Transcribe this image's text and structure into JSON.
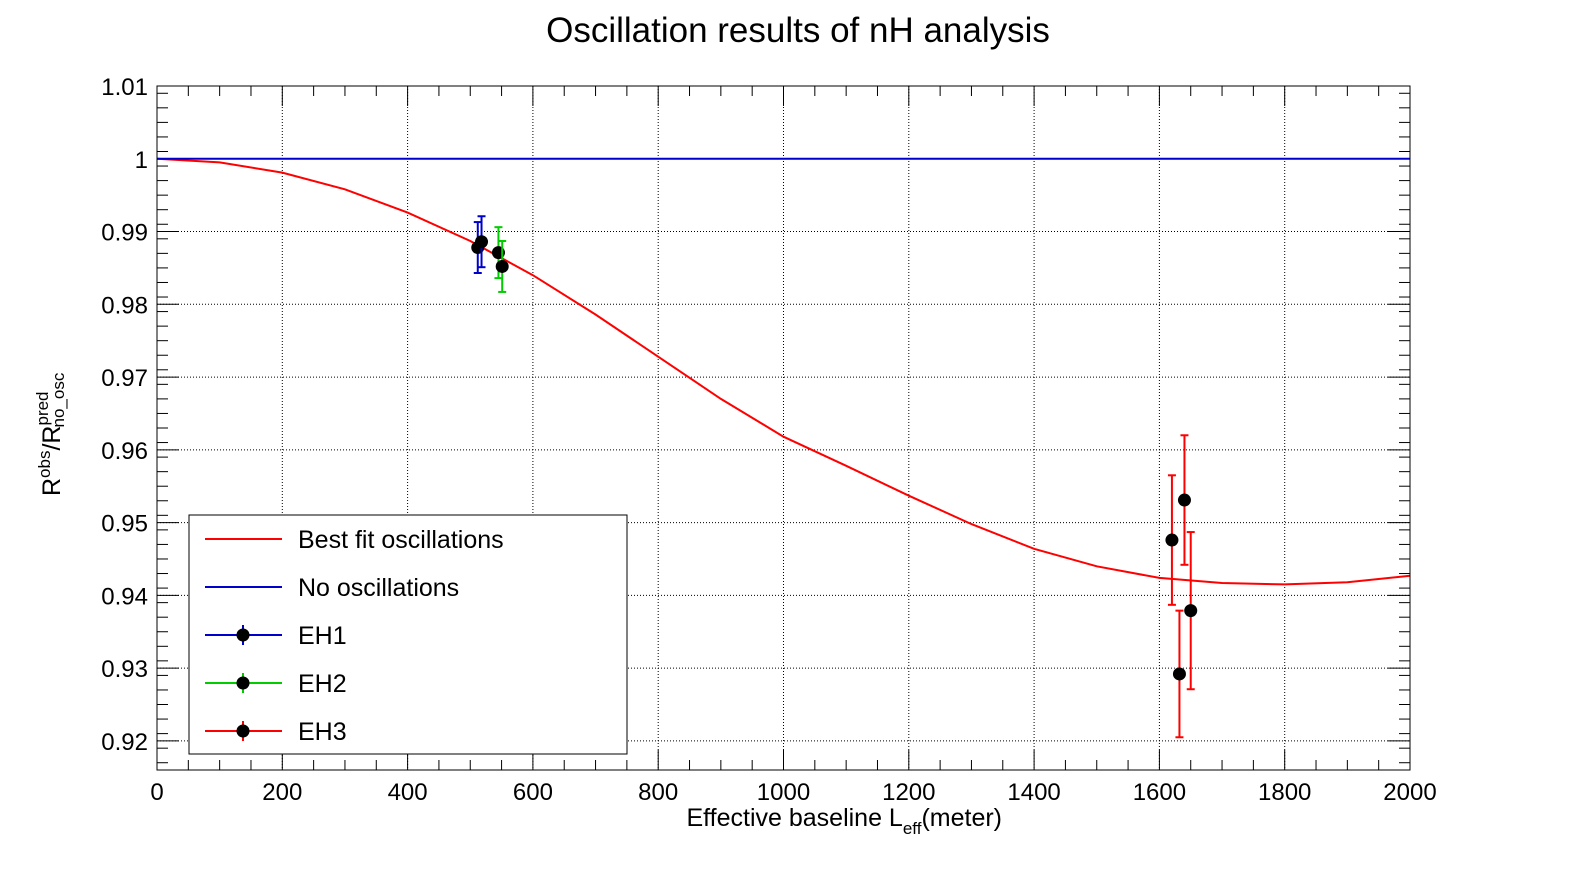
{
  "chart_data": {
    "type": "scatter",
    "title": "Oscillation results of nH analysis",
    "xlabel": {
      "main": "Effective baseline L",
      "sub": "eff",
      "unit": "(meter)"
    },
    "ylabel": {
      "r1": "R",
      "sup1": "obs",
      "slash": "/R",
      "sup2": "pred",
      "sub2": "no_osc"
    },
    "xlim": [
      0,
      2000
    ],
    "ylim": [
      0.916,
      1.01
    ],
    "xticks": [
      0,
      200,
      400,
      600,
      800,
      1000,
      1200,
      1400,
      1600,
      1800,
      2000
    ],
    "xtick_labels": [
      "0",
      "200",
      "400",
      "600",
      "800",
      "1000",
      "1200",
      "1400",
      "1600",
      "1800",
      "2000"
    ],
    "yticks": [
      0.92,
      0.93,
      0.94,
      0.95,
      0.96,
      0.97,
      0.98,
      0.99,
      1,
      1.01
    ],
    "ytick_labels": [
      "0.92",
      "0.93",
      "0.94",
      "0.95",
      "0.96",
      "0.97",
      "0.98",
      "0.99",
      "1",
      "1.01"
    ],
    "grid": true,
    "legend_position": "bottom-left",
    "series": [
      {
        "name": "Best fit oscillations",
        "kind": "curve",
        "color": "#ff0000",
        "x": [
          0,
          100,
          200,
          300,
          400,
          500,
          600,
          700,
          800,
          900,
          1000,
          1100,
          1200,
          1300,
          1400,
          1500,
          1600,
          1700,
          1800,
          1900,
          2000
        ],
        "y": [
          1.0,
          0.9995,
          0.9981,
          0.9958,
          0.9926,
          0.9887,
          0.984,
          0.9786,
          0.9728,
          0.967,
          0.9618,
          0.9578,
          0.9537,
          0.9498,
          0.9464,
          0.944,
          0.9424,
          0.9417,
          0.9415,
          0.9418,
          0.9427
        ]
      },
      {
        "name": "No oscillations",
        "kind": "curve",
        "color": "#0000cc",
        "x": [
          0,
          2000
        ],
        "y": [
          1.0,
          1.0
        ]
      },
      {
        "name": "EH1",
        "kind": "points",
        "color": "#0000cc",
        "x": [
          512,
          518
        ],
        "y": [
          0.9878,
          0.9886
        ],
        "yerr": [
          0.0035,
          0.0035
        ]
      },
      {
        "name": "EH2",
        "kind": "points",
        "color": "#00cc00",
        "x": [
          545,
          551
        ],
        "y": [
          0.9871,
          0.9852
        ],
        "yerr": [
          0.0035,
          0.0035
        ]
      },
      {
        "name": "EH3",
        "kind": "points",
        "color": "#ff0000",
        "x": [
          1620,
          1632,
          1640,
          1650
        ],
        "y": [
          0.9476,
          0.9292,
          0.9531,
          0.9379
        ],
        "yerr": [
          0.0089,
          0.0087,
          0.0089,
          0.0108
        ]
      }
    ]
  }
}
